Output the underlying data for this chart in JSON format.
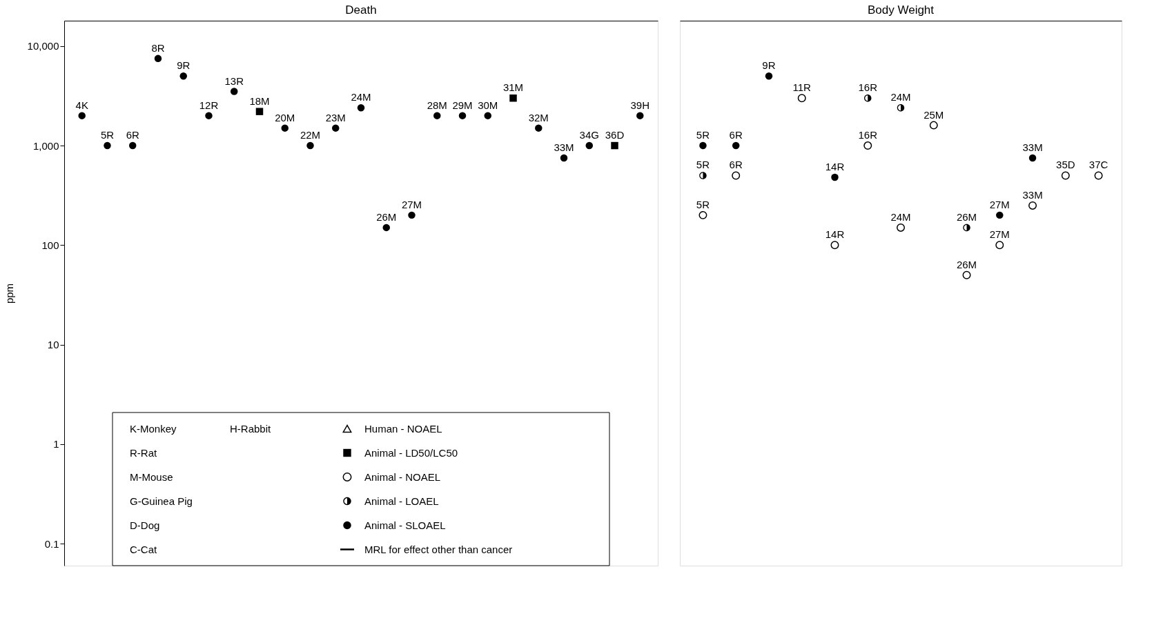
{
  "chart_data": [
    {
      "type": "scatter",
      "title": "Death",
      "ylabel": "ppm",
      "log": true,
      "ylim": [
        0.06,
        18000
      ],
      "yticks": [
        0.1,
        1,
        10,
        100,
        {
          "value": 1000,
          "label": "1,000"
        },
        {
          "value": 10000,
          "label": "10,000"
        }
      ],
      "tick_labels": "y",
      "grid": false,
      "legend": "bottom",
      "categories": [
        "4K",
        "5R",
        "6R",
        "8R",
        "9R",
        "12R",
        "13R",
        "18M",
        "20M",
        "22M",
        "23M",
        "24M",
        "26M",
        "27M",
        "28M",
        "29M",
        "30M",
        "31M",
        "32M",
        "33M",
        "34G",
        "36D",
        "39H"
      ],
      "annotations": [
        "K-Monkey",
        "H-Rabbit",
        "R-Rat",
        "M-Mouse",
        "G-Guinea Pig",
        "D-Dog",
        "C-Cat"
      ],
      "series": [
        {
          "name": "Human - NOAEL",
          "color": "#000000",
          "marker": "triangle-open",
          "values": [
            null,
            null,
            null,
            null,
            null,
            null,
            null,
            null,
            null,
            null,
            null,
            null,
            null,
            null,
            null,
            null,
            null,
            null,
            null,
            null,
            null,
            null,
            null
          ]
        },
        {
          "name": "Animal - LD50/LC50",
          "color": "#000000",
          "marker": "square",
          "values": [
            null,
            null,
            null,
            null,
            null,
            null,
            null,
            2200,
            null,
            null,
            null,
            null,
            null,
            null,
            null,
            null,
            null,
            3000,
            null,
            null,
            null,
            1000,
            null
          ]
        },
        {
          "name": "Animal - NOAEL",
          "color": "#000000",
          "marker": "circle-open",
          "values": [
            null,
            null,
            null,
            null,
            null,
            null,
            null,
            null,
            null,
            null,
            null,
            null,
            null,
            null,
            null,
            null,
            null,
            null,
            null,
            null,
            null,
            null,
            null
          ]
        },
        {
          "name": "Animal - LOAEL",
          "color": "#000000",
          "marker": "circle-half",
          "values": [
            null,
            null,
            null,
            null,
            null,
            null,
            null,
            null,
            null,
            null,
            null,
            null,
            null,
            null,
            null,
            null,
            null,
            null,
            null,
            null,
            null,
            null,
            null
          ]
        },
        {
          "name": "Animal - SLOAEL",
          "color": "#000000",
          "marker": "circle",
          "values": [
            2000,
            1000,
            1000,
            7500,
            5000,
            2000,
            3500,
            null,
            1500,
            1000,
            1500,
            2400,
            150,
            200,
            2000,
            2000,
            2000,
            null,
            1500,
            750,
            1000,
            null,
            2000
          ]
        },
        {
          "name": "MRL for effect other than cancer",
          "type": "line",
          "color": "#000000",
          "values": [
            null,
            null,
            null,
            null,
            null,
            null,
            null,
            null,
            null,
            null,
            null,
            null,
            null,
            null,
            null,
            null,
            null,
            null,
            null,
            null,
            null,
            null,
            null
          ]
        }
      ]
    },
    {
      "type": "scatter",
      "title": "Body Weight",
      "log": true,
      "ylim": [
        0.06,
        18000
      ],
      "tick_labels": false,
      "grid": false,
      "categories": [
        "5R",
        "6R",
        "9R",
        "11R",
        "14R",
        "16R",
        "24M",
        "25M",
        "26M",
        "27M",
        "33M",
        "35D",
        "37C"
      ],
      "series": [
        {
          "color": "#000000",
          "marker": "circle-open",
          "values": [
            200,
            500,
            null,
            3000,
            100,
            1000,
            150,
            1600,
            50,
            100,
            250,
            500,
            500
          ]
        },
        {
          "color": "#000000",
          "marker": "circle-half",
          "values": [
            500,
            null,
            null,
            null,
            null,
            3000,
            2400,
            null,
            150,
            null,
            null,
            null,
            null
          ]
        },
        {
          "color": "#000000",
          "marker": "circle",
          "values": [
            1000,
            1000,
            5000,
            null,
            480,
            null,
            null,
            null,
            null,
            200,
            750,
            null,
            null
          ]
        }
      ]
    }
  ]
}
